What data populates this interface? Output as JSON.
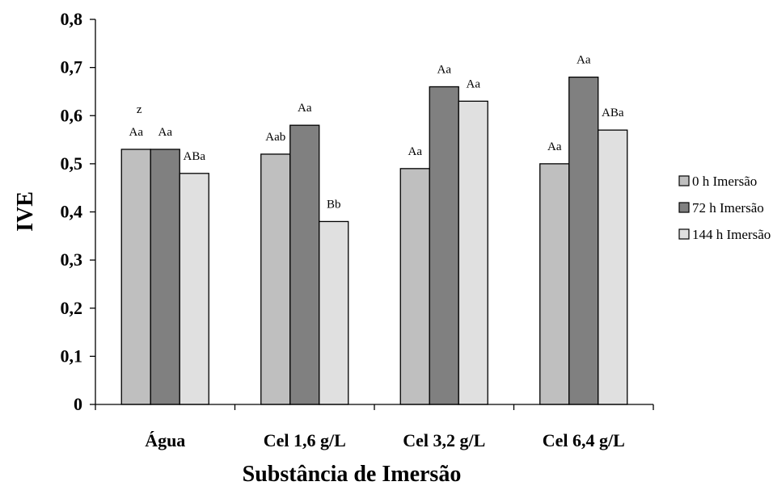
{
  "chart_data": {
    "type": "bar",
    "title": "",
    "xlabel": "Substância de Imersão",
    "ylabel": "IVE",
    "ylim": [
      0,
      0.8
    ],
    "yticks": [
      0,
      0.1,
      0.2,
      0.3,
      0.4,
      0.5,
      0.6,
      0.7,
      0.8
    ],
    "ytick_labels": [
      "0",
      "0,1",
      "0,2",
      "0,3",
      "0,4",
      "0,5",
      "0,6",
      "0,7",
      "0,8"
    ],
    "grid": false,
    "legend_position": "right",
    "categories": [
      "Água",
      "Cel 1,6 g/L",
      "Cel 3,2 g/L",
      "Cel 6,4 g/L"
    ],
    "series": [
      {
        "name": "0 h Imersão",
        "color": "#bfbfbf",
        "values": [
          0.53,
          0.52,
          0.49,
          0.5
        ],
        "labels": [
          "Aa",
          "Aab",
          "Aa",
          "Aa"
        ]
      },
      {
        "name": "72 h Imersão",
        "color": "#808080",
        "values": [
          0.53,
          0.58,
          0.66,
          0.68
        ],
        "labels": [
          "Aa",
          "Aa",
          "Aa",
          "Aa"
        ]
      },
      {
        "name": "144 h Imersão",
        "color": "#e0e0e0",
        "values": [
          0.48,
          0.38,
          0.63,
          0.57
        ],
        "labels": [
          "ABa",
          "Bb",
          "Aa",
          "ABa"
        ]
      }
    ],
    "annotations": [
      {
        "text": "z",
        "category": "Água",
        "series": "0 h Imersão"
      }
    ]
  }
}
